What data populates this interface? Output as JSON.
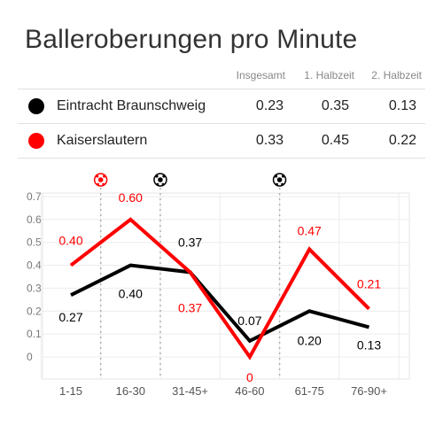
{
  "title": "Balleroberungen pro Minute",
  "table": {
    "headers": [
      "Insgesamt",
      "1. Halbzeit",
      "2. Halbzeit"
    ],
    "rows": [
      {
        "team": "Eintracht Braunschweig",
        "color": "#000000",
        "values": [
          "0.23",
          "0.35",
          "0.13"
        ]
      },
      {
        "team": "Kaiserslautern",
        "color": "#ff0000",
        "values": [
          "0.33",
          "0.45",
          "0.22"
        ]
      }
    ]
  },
  "chart_data": {
    "type": "line",
    "categories": [
      "1-15",
      "16-30",
      "31-45+",
      "46-60",
      "61-75",
      "76-90+"
    ],
    "ylim": [
      0,
      0.7
    ],
    "yticks": [
      "0",
      "0.1",
      "0.2",
      "0.3",
      "0.4",
      "0.5",
      "0.6",
      "0.7"
    ],
    "grid": true,
    "series": [
      {
        "name": "Eintracht Braunschweig",
        "color": "#000000",
        "values": [
          0.27,
          0.4,
          0.37,
          0.07,
          0.2,
          0.13
        ],
        "labels": [
          "0.27",
          "0.40",
          "0.37",
          "0.07",
          "0.20",
          "0.13"
        ]
      },
      {
        "name": "Kaiserslautern",
        "color": "#ff0000",
        "values": [
          0.4,
          0.6,
          0.37,
          0.0,
          0.47,
          0.21
        ],
        "labels": [
          "0.40",
          "0.60",
          "0.37",
          "0",
          "0.47",
          "0.21"
        ]
      }
    ],
    "goal_markers": [
      {
        "x": 1.0,
        "team": "Kaiserslautern",
        "color": "#ff0000",
        "icon": "soccer-ball-icon"
      },
      {
        "x": 2.0,
        "team": "Eintracht Braunschweig",
        "color": "#000000",
        "icon": "soccer-ball-icon"
      },
      {
        "x": 4.0,
        "team": "Eintracht Braunschweig",
        "color": "#000000",
        "icon": "soccer-ball-icon"
      }
    ]
  }
}
